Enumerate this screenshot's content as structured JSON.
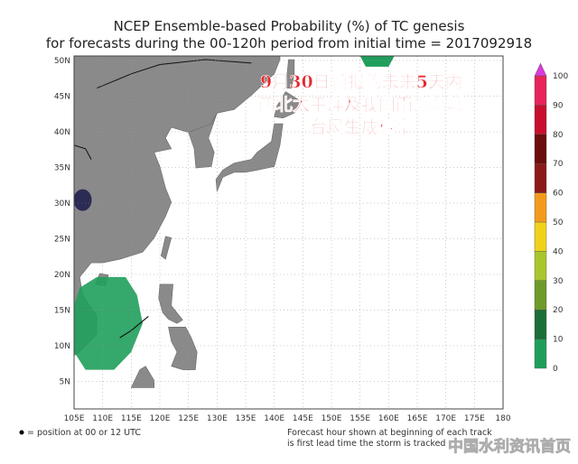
{
  "title": "NCEP Ensemble-based Probability (%) of TC genesis",
  "subtitle": "for forecasts during the 00-120h period from initial time = 2017092918",
  "annotation": [
    "9月30日预报的未来5天内",
    "西北太平洋及我国南海海域",
    "台风生成概率"
  ],
  "map": {
    "xticks": [
      "105E",
      "110E",
      "115E",
      "120E",
      "125E",
      "130E",
      "135E",
      "140E",
      "145E",
      "150E",
      "155E",
      "160E",
      "165E",
      "170E",
      "175E",
      "180"
    ],
    "yticks": [
      "50N",
      "45N",
      "40N",
      "35N",
      "30N",
      "25N",
      "20N",
      "15N",
      "10N",
      "5N"
    ]
  },
  "colorbar": {
    "labels": [
      0,
      10,
      20,
      30,
      40,
      50,
      60,
      70,
      80,
      90,
      100
    ]
  },
  "footer": {
    "legend": "= position at 00 or 12 UTC",
    "note_lines": [
      "Forecast hour shown at beginning of each track",
      "is first lead time the storm is tracked"
    ]
  },
  "watermark": "中国水利资讯首页"
}
